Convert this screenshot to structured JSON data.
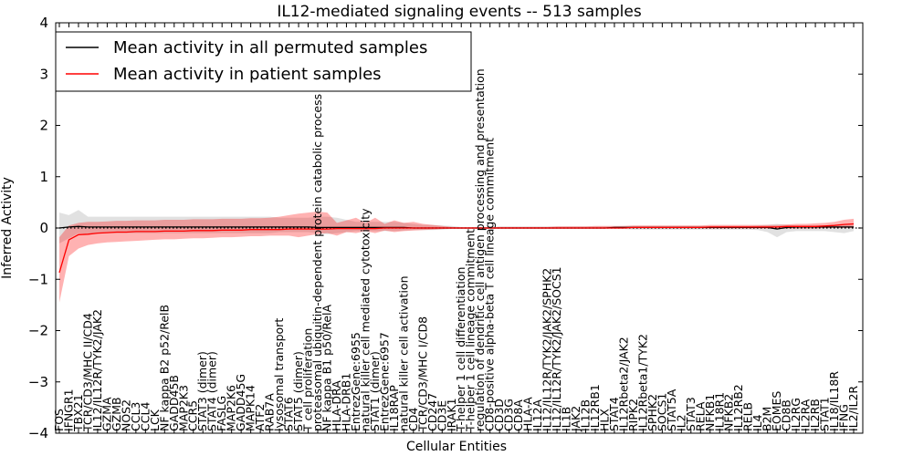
{
  "chart_data": {
    "type": "line",
    "title": "IL12-mediated signaling events -- 513 samples",
    "xlabel": "Cellular Entities",
    "ylabel": "Inferred Activity",
    "ylim": [
      -4,
      4
    ],
    "yticks": [
      -4,
      -3,
      -2,
      -1,
      0,
      1,
      2,
      3,
      4
    ],
    "legend": {
      "position": "top-left",
      "entries": [
        {
          "label": "Mean activity in all permuted samples",
          "color": "#000000"
        },
        {
          "label": "Mean activity in patient samples",
          "color": "#ff0000"
        }
      ]
    },
    "categories": [
      "FOS",
      "IFNGR1",
      "TBX21",
      "TCR/CD3/MHC II/CD4",
      "IL12/IL12R/TYK2/JAK2",
      "GZMA",
      "GZMB",
      "NOS2",
      "CCL3",
      "CCL4",
      "LCK",
      "NF kappa B2 p52/RelB",
      "GADD45B",
      "MAP2K3",
      "CCR5",
      "STAT3 (dimer)",
      "STAT4 (dimer)",
      "FASLG",
      "MAP2K6",
      "GADD45G",
      "MAPK14",
      "ATF2",
      "RAB7A",
      "lysosomal transport",
      "STAT6",
      "STAT5 (dimer)",
      "T cell proliferation",
      "proteasomal ubiquitin-dependent protein catabolic process",
      "NF kappa B1 p50/RelA",
      "HLA-DRA",
      "HLA-DRB1",
      "EntrezGene:6955",
      "natural killer cell mediated cytotoxicity",
      "STAT1 (dimer)",
      "EntrezGene:6957",
      "IL18RAP",
      "natural killer cell activation",
      "CD4",
      "TCR/CD3/MHC I/CD8",
      "CD247",
      "CD3E",
      "IRAK1",
      "T-helper 1 cell differentiation",
      "T-helper 1 cell lineage commitment",
      "regulation of dendritic cell antigen processing and presentation",
      "CD8-positive alpha-beta T cell lineage commitment",
      "CD3D",
      "CD3G",
      "CD8A",
      "HLA-A",
      "IL12A",
      "IL12/IL12R/TYK2/JAK2/SPHK2",
      "IL12/IL12R/TYK2/JAK2/SOCS1",
      "IL1B",
      "JAK2",
      "IL12B",
      "IL12RB1",
      "HLX",
      "STAT4",
      "IL12Rbeta2/JAK2",
      "RIPK2",
      "IL12Rbeta1/TYK2",
      "SPHK2",
      "SOCS1",
      "STAT5A",
      "IL2",
      "STAT3",
      "RELA",
      "NFKB1",
      "IL18R1",
      "NFKB2",
      "IL12RB2",
      "RELB",
      "IL4",
      "B2M",
      "EOMES",
      "CD8B",
      "IL2RG",
      "IL2RA",
      "IL2RB",
      "STAT1",
      "IL18/IL18R",
      "IFNG",
      "IL2/IL2R"
    ],
    "series": [
      {
        "name": "Mean activity in all permuted samples",
        "color": "#000000",
        "values": [
          0.0,
          0.02,
          0.03,
          0.02,
          0.02,
          0.02,
          0.02,
          0.02,
          0.02,
          0.02,
          0.02,
          0.02,
          0.02,
          0.02,
          0.02,
          0.02,
          0.02,
          0.02,
          0.02,
          0.02,
          0.02,
          0.02,
          0.02,
          0.02,
          0.02,
          0.02,
          0.02,
          0.01,
          0.01,
          0.01,
          0.01,
          0.01,
          0.01,
          0.01,
          0.01,
          0.01,
          0.01,
          0.0,
          0.0,
          0.0,
          0.0,
          0.0,
          0.0,
          0.0,
          0.0,
          0.0,
          0.0,
          0.0,
          0.0,
          0.0,
          0.0,
          0.0,
          0.0,
          0.0,
          0.0,
          0.0,
          0.0,
          0.0,
          0.01,
          0.01,
          0.01,
          0.01,
          0.01,
          0.01,
          0.01,
          0.01,
          0.01,
          0.01,
          0.01,
          0.01,
          0.01,
          0.01,
          0.01,
          0.01,
          0.01,
          -0.02,
          0.01,
          0.02,
          0.02,
          0.02,
          0.02,
          0.02,
          0.02,
          0.02
        ],
        "band_lower": [
          -0.3,
          -0.2,
          -0.1,
          -0.12,
          -0.1,
          -0.1,
          -0.1,
          -0.1,
          -0.1,
          -0.1,
          -0.1,
          -0.1,
          -0.1,
          -0.1,
          -0.1,
          -0.1,
          -0.1,
          -0.1,
          -0.1,
          -0.1,
          -0.1,
          -0.1,
          -0.1,
          -0.08,
          -0.08,
          -0.08,
          -0.08,
          -0.1,
          -0.12,
          -0.1,
          -0.08,
          -0.06,
          -0.06,
          -0.06,
          -0.06,
          -0.06,
          -0.05,
          -0.04,
          -0.04,
          -0.04,
          -0.03,
          -0.02,
          -0.02,
          -0.02,
          -0.02,
          -0.02,
          -0.02,
          -0.02,
          -0.02,
          -0.02,
          -0.02,
          -0.02,
          -0.02,
          -0.02,
          -0.02,
          -0.02,
          -0.02,
          -0.02,
          -0.02,
          -0.02,
          -0.03,
          -0.03,
          -0.03,
          -0.03,
          -0.03,
          -0.03,
          -0.03,
          -0.03,
          -0.03,
          -0.03,
          -0.03,
          -0.03,
          -0.03,
          -0.04,
          -0.08,
          -0.18,
          -0.08,
          -0.06,
          -0.06,
          -0.06,
          -0.06,
          -0.08,
          -0.1,
          -0.06
        ],
        "band_upper": [
          0.3,
          0.25,
          0.35,
          0.22,
          0.22,
          0.22,
          0.22,
          0.22,
          0.22,
          0.22,
          0.22,
          0.22,
          0.22,
          0.22,
          0.22,
          0.22,
          0.22,
          0.22,
          0.22,
          0.22,
          0.22,
          0.22,
          0.22,
          0.2,
          0.2,
          0.2,
          0.2,
          0.22,
          0.22,
          0.2,
          0.16,
          0.12,
          0.12,
          0.12,
          0.12,
          0.12,
          0.1,
          0.08,
          0.06,
          0.06,
          0.05,
          0.04,
          0.02,
          0.02,
          0.02,
          0.02,
          0.03,
          0.03,
          0.03,
          0.03,
          0.03,
          0.03,
          0.03,
          0.03,
          0.03,
          0.03,
          0.03,
          0.03,
          0.03,
          0.04,
          0.04,
          0.04,
          0.04,
          0.04,
          0.04,
          0.04,
          0.04,
          0.04,
          0.04,
          0.04,
          0.04,
          0.04,
          0.04,
          0.05,
          0.06,
          0.08,
          0.06,
          0.05,
          0.05,
          0.05,
          0.05,
          0.06,
          0.07,
          0.06
        ]
      },
      {
        "name": "Mean activity in patient samples",
        "color": "#ff0000",
        "values": [
          -0.87,
          -0.23,
          -0.13,
          -0.12,
          -0.1,
          -0.09,
          -0.08,
          -0.08,
          -0.07,
          -0.07,
          -0.07,
          -0.06,
          -0.06,
          -0.06,
          -0.05,
          -0.05,
          -0.05,
          -0.04,
          -0.04,
          -0.04,
          -0.03,
          -0.03,
          -0.03,
          -0.03,
          -0.02,
          -0.02,
          -0.02,
          -0.02,
          -0.02,
          -0.01,
          -0.01,
          -0.01,
          -0.01,
          -0.01,
          0.0,
          0.0,
          0.0,
          0.0,
          0.0,
          0.0,
          0.0,
          0.0,
          0.0,
          0.0,
          0.0,
          0.0,
          0.0,
          0.0,
          0.0,
          0.0,
          0.0,
          0.0,
          0.0,
          0.0,
          0.0,
          0.0,
          0.0,
          0.0,
          0.0,
          0.0,
          0.01,
          0.01,
          0.01,
          0.01,
          0.01,
          0.01,
          0.01,
          0.01,
          0.02,
          0.02,
          0.02,
          0.02,
          0.02,
          0.02,
          0.02,
          0.02,
          0.03,
          0.03,
          0.03,
          0.03,
          0.04,
          0.05,
          0.07,
          0.08
        ],
        "band_lower": [
          -1.45,
          -0.55,
          -0.4,
          -0.33,
          -0.3,
          -0.28,
          -0.27,
          -0.26,
          -0.25,
          -0.24,
          -0.23,
          -0.22,
          -0.22,
          -0.21,
          -0.2,
          -0.2,
          -0.19,
          -0.18,
          -0.18,
          -0.17,
          -0.16,
          -0.16,
          -0.15,
          -0.15,
          -0.15,
          -0.18,
          -0.15,
          -0.12,
          -0.1,
          -0.15,
          -0.08,
          -0.1,
          -0.06,
          -0.1,
          -0.05,
          -0.08,
          -0.06,
          -0.05,
          -0.04,
          -0.03,
          -0.02,
          -0.01,
          -0.01,
          -0.01,
          -0.01,
          -0.01,
          -0.01,
          -0.01,
          -0.01,
          -0.01,
          -0.01,
          -0.01,
          -0.01,
          -0.01,
          -0.01,
          -0.01,
          -0.01,
          -0.01,
          -0.01,
          -0.01,
          -0.01,
          -0.01,
          -0.01,
          -0.01,
          -0.01,
          -0.01,
          -0.01,
          -0.01,
          -0.01,
          -0.01,
          -0.01,
          -0.01,
          -0.01,
          -0.01,
          -0.01,
          -0.01,
          -0.01,
          -0.01,
          -0.01,
          -0.01,
          0.0,
          0.0,
          0.0,
          0.0
        ],
        "band_upper": [
          -0.18,
          0.05,
          0.1,
          0.12,
          0.12,
          0.13,
          0.14,
          0.14,
          0.15,
          0.15,
          0.15,
          0.16,
          0.16,
          0.16,
          0.17,
          0.17,
          0.17,
          0.18,
          0.18,
          0.18,
          0.19,
          0.19,
          0.2,
          0.22,
          0.25,
          0.28,
          0.3,
          0.32,
          0.3,
          0.1,
          0.15,
          0.2,
          0.1,
          0.2,
          0.08,
          0.15,
          0.1,
          0.12,
          0.08,
          0.06,
          0.04,
          0.02,
          0.01,
          0.01,
          0.01,
          0.01,
          0.02,
          0.02,
          0.02,
          0.02,
          0.02,
          0.02,
          0.03,
          0.03,
          0.03,
          0.03,
          0.04,
          0.04,
          0.04,
          0.04,
          0.05,
          0.05,
          0.05,
          0.05,
          0.05,
          0.05,
          0.05,
          0.05,
          0.06,
          0.06,
          0.06,
          0.06,
          0.06,
          0.06,
          0.06,
          0.06,
          0.07,
          0.08,
          0.08,
          0.09,
          0.1,
          0.12,
          0.16,
          0.18
        ]
      }
    ]
  }
}
